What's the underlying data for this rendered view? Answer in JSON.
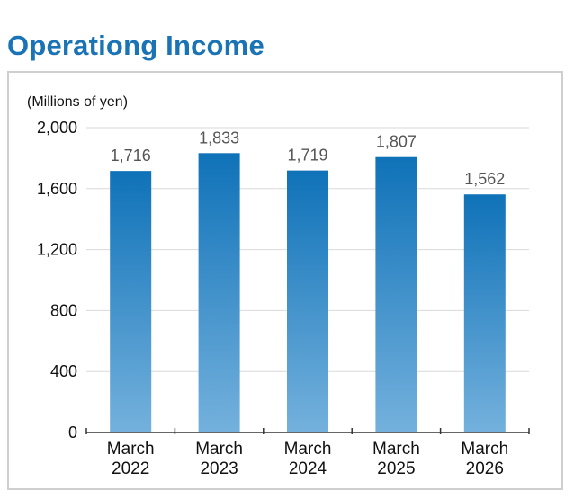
{
  "chart_data": {
    "type": "bar",
    "title": "Operationg Income",
    "ylabel": "(Millions of yen)",
    "categories": [
      [
        "March",
        "2022"
      ],
      [
        "March",
        "2023"
      ],
      [
        "March",
        "2024"
      ],
      [
        "March",
        "2025"
      ],
      [
        "March",
        "2026"
      ]
    ],
    "values": [
      1716,
      1833,
      1719,
      1807,
      1562
    ],
    "value_labels": [
      "1,716",
      "1,833",
      "1,719",
      "1,807",
      "1,562"
    ],
    "yticks": [
      0,
      400,
      800,
      1200,
      1600,
      2000
    ],
    "ytick_labels": [
      "0",
      "400",
      "800",
      "1,200",
      "1,600",
      "2,000"
    ],
    "ylim": [
      0,
      2000
    ],
    "grid": true,
    "colors": {
      "bar_top": "#0f72b8",
      "bar_bottom": "#74b1dd",
      "title": "#1a73b5",
      "grid": "#d9d9d9"
    }
  }
}
